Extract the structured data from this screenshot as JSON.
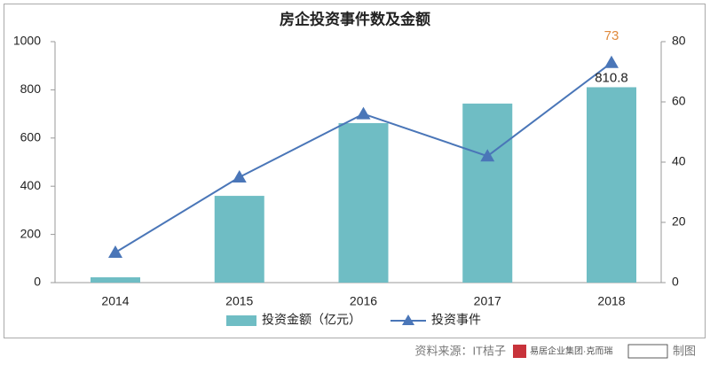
{
  "chart_data": {
    "type": "bar",
    "title": "房企投资事件数及金额",
    "categories": [
      "2014",
      "2015",
      "2016",
      "2017",
      "2018"
    ],
    "series": [
      {
        "name": "投资金额（亿元）",
        "type": "bar",
        "color": "#6fbdc4",
        "values": [
          22,
          360,
          662,
          743,
          810.8
        ],
        "label_color": "#222222"
      },
      {
        "name": "投资事件",
        "type": "line",
        "axis": "y2",
        "color": "#4a76b8",
        "values": [
          10,
          35,
          56,
          42,
          73
        ],
        "label_color": "#e08a3c"
      }
    ],
    "label_last": true,
    "ylim": [
      0,
      1000
    ],
    "yticks": [
      0,
      200,
      400,
      600,
      800,
      1000
    ],
    "y2lim": [
      0,
      80
    ],
    "y2ticks": [
      0,
      20,
      40,
      60,
      80
    ],
    "grid": false,
    "legend": "bottom",
    "source": "资料来源：IT桔子",
    "logo_text": "易居企业集团·克而瑞",
    "source_suffix": "制图"
  }
}
